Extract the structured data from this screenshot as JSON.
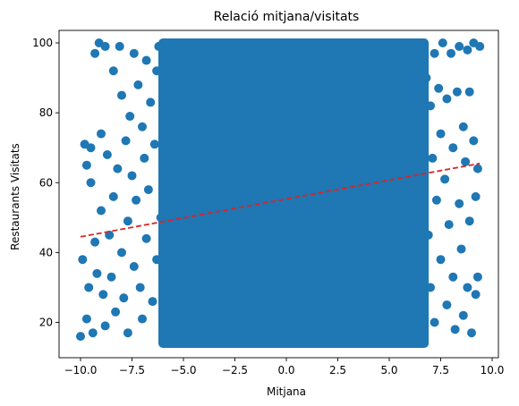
{
  "chart_data": {
    "type": "scatter",
    "title": "Relació mitjana/visitats",
    "xlabel": "Mitjana",
    "ylabel": "Restaurants Visitats",
    "xlim": [
      -10.0,
      9.4
    ],
    "ylim": [
      14,
      100
    ],
    "x_ticks": [
      -10.0,
      -7.5,
      -5.0,
      -2.5,
      0.0,
      2.5,
      5.0,
      7.5,
      10.0
    ],
    "x_tick_labels": [
      "−10.0",
      "−7.5",
      "−5.0",
      "−2.5",
      "0.0",
      "2.5",
      "5.0",
      "7.5",
      "10.0"
    ],
    "y_ticks": [
      20,
      40,
      60,
      80,
      100
    ],
    "y_tick_labels": [
      "20",
      "40",
      "60",
      "80",
      "100"
    ],
    "grid": false,
    "series": [
      {
        "marker_color": "#1f77b4",
        "dense_region": {
          "x": [
            -6.0,
            6.7
          ],
          "y": [
            14,
            100
          ]
        },
        "points": [
          [
            -10.0,
            16
          ],
          [
            -9.9,
            38
          ],
          [
            -9.8,
            71
          ],
          [
            -9.7,
            65
          ],
          [
            -9.7,
            21
          ],
          [
            -9.6,
            30
          ],
          [
            -9.5,
            70
          ],
          [
            -9.5,
            60
          ],
          [
            -9.4,
            17
          ],
          [
            -9.3,
            97
          ],
          [
            -9.3,
            43
          ],
          [
            -9.2,
            34
          ],
          [
            -9.1,
            100
          ],
          [
            -9.0,
            74
          ],
          [
            -9.0,
            52
          ],
          [
            -8.9,
            28
          ],
          [
            -8.8,
            99
          ],
          [
            -8.8,
            19
          ],
          [
            -8.7,
            68
          ],
          [
            -8.6,
            45
          ],
          [
            -8.5,
            33
          ],
          [
            -8.4,
            92
          ],
          [
            -8.4,
            56
          ],
          [
            -8.3,
            23
          ],
          [
            -8.2,
            64
          ],
          [
            -8.1,
            99
          ],
          [
            -8.0,
            85
          ],
          [
            -8.0,
            40
          ],
          [
            -7.9,
            27
          ],
          [
            -7.8,
            72
          ],
          [
            -7.7,
            49
          ],
          [
            -7.7,
            17
          ],
          [
            -7.6,
            79
          ],
          [
            -7.5,
            62
          ],
          [
            -7.4,
            97
          ],
          [
            -7.4,
            36
          ],
          [
            -7.3,
            55
          ],
          [
            -7.2,
            88
          ],
          [
            -7.1,
            30
          ],
          [
            -7.0,
            76
          ],
          [
            -7.0,
            21
          ],
          [
            -6.9,
            67
          ],
          [
            -6.8,
            44
          ],
          [
            -6.8,
            95
          ],
          [
            -6.7,
            58
          ],
          [
            -6.6,
            83
          ],
          [
            -6.5,
            26
          ],
          [
            -6.4,
            71
          ],
          [
            -6.3,
            92
          ],
          [
            -6.3,
            38
          ],
          [
            -6.2,
            99
          ],
          [
            -6.1,
            50
          ],
          [
            6.7,
            99
          ],
          [
            6.8,
            90
          ],
          [
            6.9,
            45
          ],
          [
            7.0,
            82
          ],
          [
            7.0,
            30
          ],
          [
            7.1,
            67
          ],
          [
            7.2,
            97
          ],
          [
            7.2,
            20
          ],
          [
            7.3,
            55
          ],
          [
            7.4,
            87
          ],
          [
            7.5,
            38
          ],
          [
            7.5,
            74
          ],
          [
            7.6,
            100
          ],
          [
            7.7,
            61
          ],
          [
            7.8,
            25
          ],
          [
            7.8,
            84
          ],
          [
            7.9,
            48
          ],
          [
            8.0,
            97
          ],
          [
            8.1,
            70
          ],
          [
            8.1,
            33
          ],
          [
            8.2,
            18
          ],
          [
            8.3,
            86
          ],
          [
            8.4,
            54
          ],
          [
            8.4,
            99
          ],
          [
            8.5,
            41
          ],
          [
            8.6,
            76
          ],
          [
            8.6,
            22
          ],
          [
            8.7,
            66
          ],
          [
            8.8,
            30
          ],
          [
            8.8,
            98
          ],
          [
            8.9,
            86
          ],
          [
            8.9,
            49
          ],
          [
            9.0,
            17
          ],
          [
            9.1,
            72
          ],
          [
            9.1,
            100
          ],
          [
            9.2,
            56
          ],
          [
            9.2,
            28
          ],
          [
            9.3,
            33
          ],
          [
            9.3,
            64
          ],
          [
            9.4,
            99
          ]
        ]
      }
    ],
    "trendline": {
      "color": "#d62728",
      "style": "dashed",
      "x": [
        -10.0,
        9.4
      ],
      "y": [
        44.5,
        65.5
      ]
    }
  }
}
